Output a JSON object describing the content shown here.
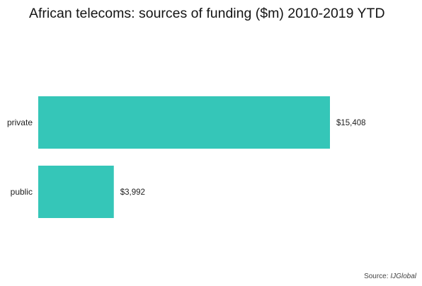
{
  "chart_data": {
    "type": "bar",
    "orientation": "horizontal",
    "title": "African telecoms: sources of funding ($m) 2010-2019 YTD",
    "categories": [
      "private",
      "public"
    ],
    "values": [
      15408,
      3992
    ],
    "data_labels": [
      "$15,408",
      "$3,992"
    ],
    "xlabel": "",
    "ylabel": "",
    "xlim": [
      0,
      15408
    ],
    "grid": false,
    "legend": "none",
    "bar_color": "#35c6b8"
  },
  "source": {
    "prefix": "Source: ",
    "name": "IJGlobal"
  }
}
